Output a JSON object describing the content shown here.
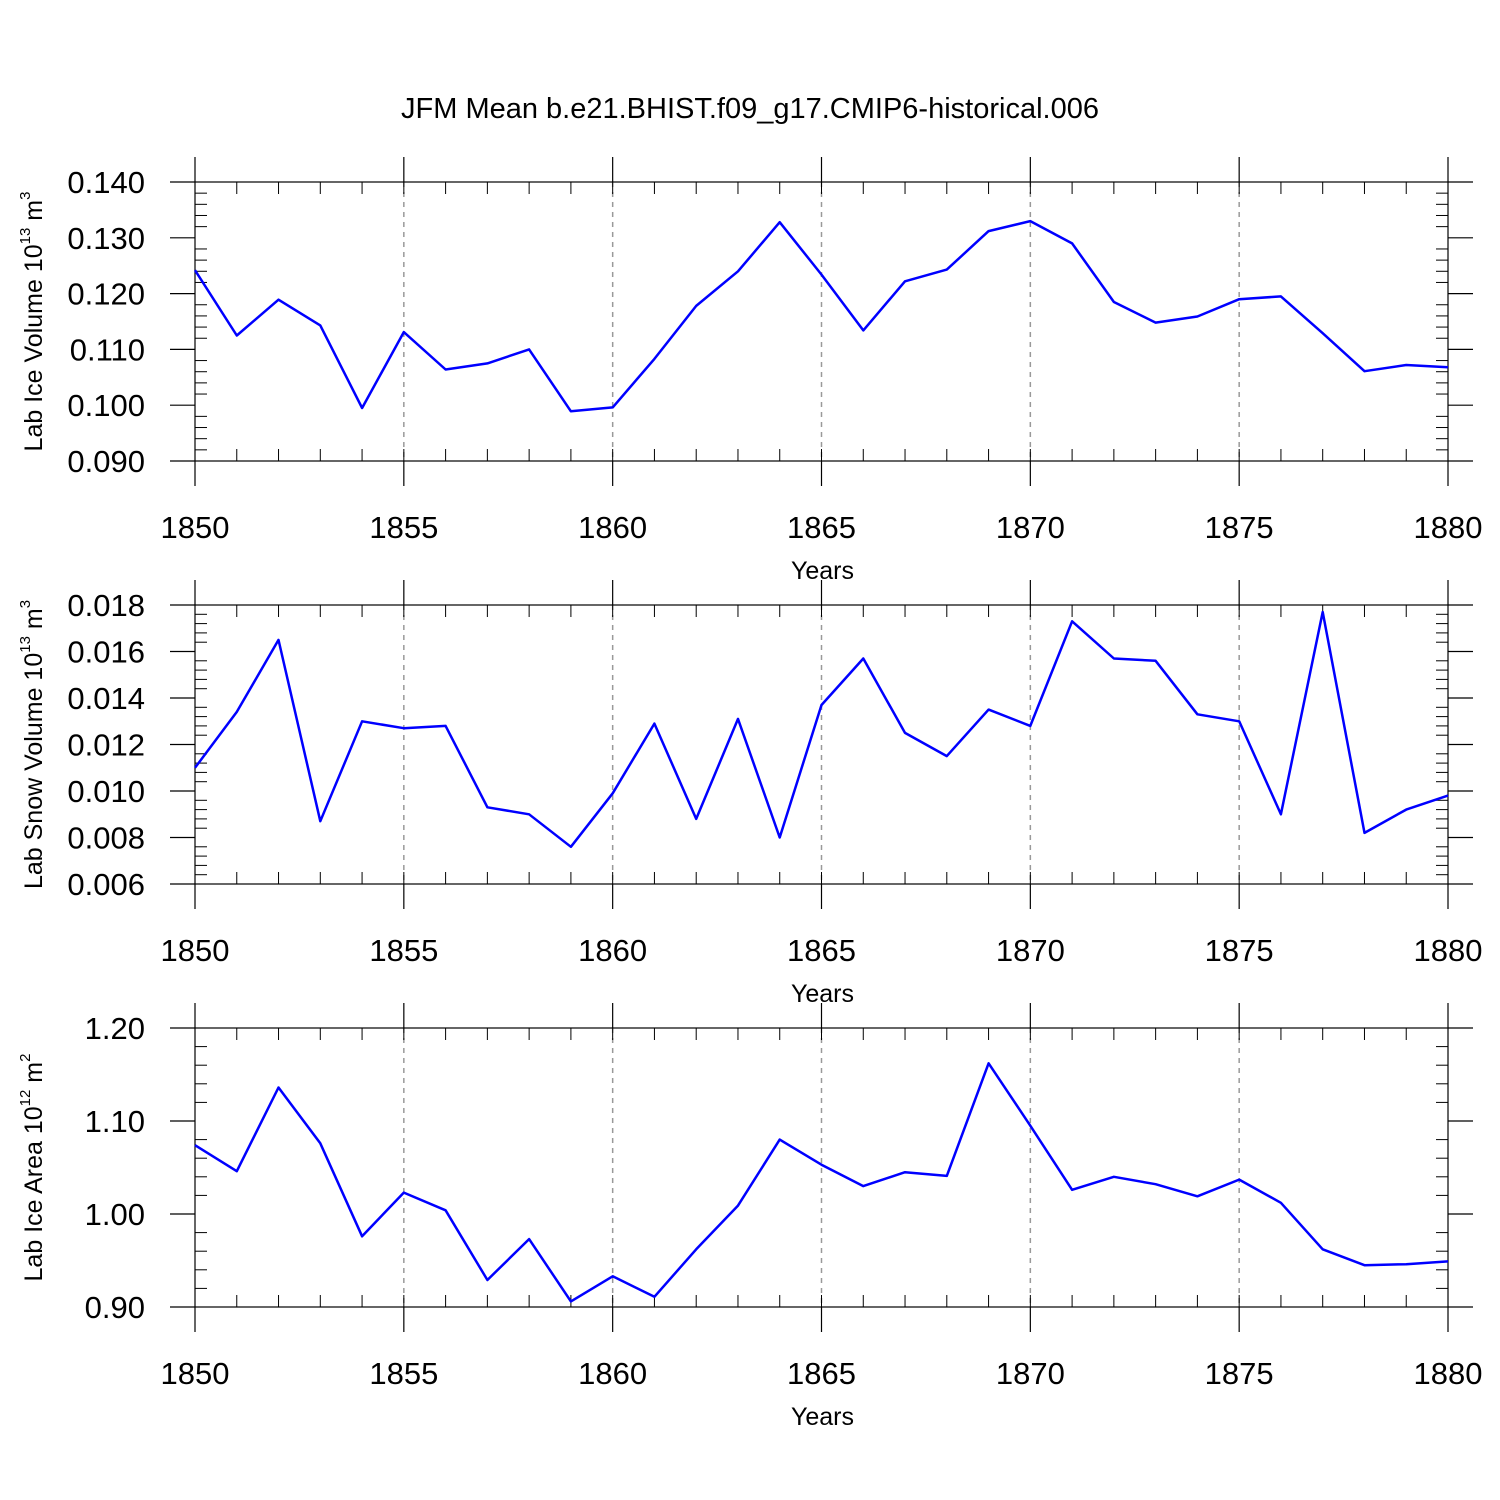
{
  "title": "JFM Mean b.e21.BHIST.f09_g17.CMIP6-historical.006",
  "line_color": "#0000ff",
  "chart_data": [
    {
      "type": "line",
      "title": "",
      "xlabel": "Years",
      "ylabel_main": "Lab Ice Volume 10",
      "ylabel_exp": "13",
      "ylabel_unit": " m",
      "ylabel_unit_exp": "3",
      "xlim": [
        1850,
        1880
      ],
      "ylim": [
        0.09,
        0.14
      ],
      "x_ticks": [
        "1850",
        "1855",
        "1860",
        "1865",
        "1870",
        "1875",
        "1880"
      ],
      "y_ticks": [
        "0.090",
        "0.100",
        "0.110",
        "0.120",
        "0.130",
        "0.140"
      ],
      "series": [
        {
          "name": "Lab Ice Volume",
          "x": [
            1850,
            1851,
            1852,
            1853,
            1854,
            1855,
            1856,
            1857,
            1858,
            1859,
            1860,
            1861,
            1862,
            1863,
            1864,
            1865,
            1866,
            1867,
            1868,
            1869,
            1870,
            1871,
            1872,
            1873,
            1874,
            1875,
            1876,
            1877,
            1878,
            1879,
            1880
          ],
          "values": [
            0.1242,
            0.1125,
            0.1189,
            0.1143,
            0.0995,
            0.1131,
            0.1064,
            0.1075,
            0.11,
            0.0989,
            0.0996,
            0.1083,
            0.1178,
            0.124,
            0.1328,
            0.1234,
            0.1134,
            0.1222,
            0.1243,
            0.1312,
            0.133,
            0.129,
            0.1185,
            0.1148,
            0.1159,
            0.119,
            0.1195,
            0.1129,
            0.1061,
            0.1072,
            0.1068
          ]
        }
      ]
    },
    {
      "type": "line",
      "title": "",
      "xlabel": "Years",
      "ylabel_main": "Lab Snow Volume 10",
      "ylabel_exp": "13",
      "ylabel_unit": " m",
      "ylabel_unit_exp": "3",
      "xlim": [
        1850,
        1880
      ],
      "ylim": [
        0.006,
        0.018
      ],
      "x_ticks": [
        "1850",
        "1855",
        "1860",
        "1865",
        "1870",
        "1875",
        "1880"
      ],
      "y_ticks": [
        "0.006",
        "0.008",
        "0.010",
        "0.012",
        "0.014",
        "0.016",
        "0.018"
      ],
      "series": [
        {
          "name": "Lab Snow Volume",
          "x": [
            1850,
            1851,
            1852,
            1853,
            1854,
            1855,
            1856,
            1857,
            1858,
            1859,
            1860,
            1861,
            1862,
            1863,
            1864,
            1865,
            1866,
            1867,
            1868,
            1869,
            1870,
            1871,
            1872,
            1873,
            1874,
            1875,
            1876,
            1877,
            1878,
            1879,
            1880
          ],
          "values": [
            0.011,
            0.0134,
            0.0165,
            0.0087,
            0.013,
            0.0127,
            0.0128,
            0.0093,
            0.009,
            0.0076,
            0.0099,
            0.0129,
            0.0088,
            0.0131,
            0.008,
            0.0137,
            0.0157,
            0.0125,
            0.0115,
            0.0135,
            0.0128,
            0.0173,
            0.0157,
            0.0156,
            0.0133,
            0.013,
            0.009,
            0.0177,
            0.0082,
            0.0092,
            0.0098
          ]
        }
      ]
    },
    {
      "type": "line",
      "title": "",
      "xlabel": "Years",
      "ylabel_main": "Lab Ice Area 10",
      "ylabel_exp": "12",
      "ylabel_unit": " m",
      "ylabel_unit_exp": "2",
      "xlim": [
        1850,
        1880
      ],
      "ylim": [
        0.9,
        1.2
      ],
      "x_ticks": [
        "1850",
        "1855",
        "1860",
        "1865",
        "1870",
        "1875",
        "1880"
      ],
      "y_ticks": [
        "0.90",
        "1.00",
        "1.10",
        "1.20"
      ],
      "series": [
        {
          "name": "Lab Ice Area",
          "x": [
            1850,
            1851,
            1852,
            1853,
            1854,
            1855,
            1856,
            1857,
            1858,
            1859,
            1860,
            1861,
            1862,
            1863,
            1864,
            1865,
            1866,
            1867,
            1868,
            1869,
            1870,
            1871,
            1872,
            1873,
            1874,
            1875,
            1876,
            1877,
            1878,
            1879,
            1880
          ],
          "values": [
            1.074,
            1.046,
            1.136,
            1.076,
            0.976,
            1.023,
            1.004,
            0.929,
            0.973,
            0.906,
            0.933,
            0.911,
            0.962,
            1.009,
            1.08,
            1.053,
            1.03,
            1.045,
            1.041,
            1.162,
            1.095,
            1.026,
            1.04,
            1.032,
            1.019,
            1.037,
            1.012,
            0.962,
            0.945,
            0.946,
            0.949
          ]
        }
      ]
    }
  ]
}
